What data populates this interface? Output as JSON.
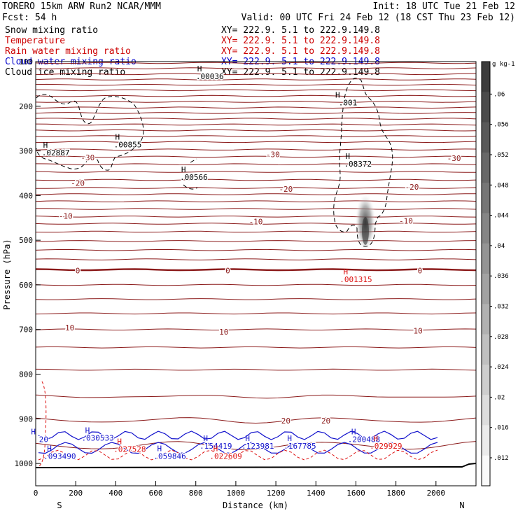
{
  "header": {
    "model": "TORERO  15km ARW   Run2    NCAR/MMM",
    "init": "Init: 18 UTC Tue 21 Feb 12",
    "fcst": "Fcst:   54 h",
    "valid": "Valid: 00 UTC Fri 24 Feb 12 (18 CST Thu 23 Feb 12)"
  },
  "legend": [
    {
      "label": "Snow mixing ratio",
      "color": "#000000",
      "xy": "XY= 222.9.  5.1 to 222.9.149.8"
    },
    {
      "label": "Temperature",
      "color": "#cc0000",
      "xy": "XY= 222.9.  5.1 to 222.9.149.8"
    },
    {
      "label": "Rain water mixing ratio",
      "color": "#cc0000",
      "xy": "XY= 222.9.  5.1 to 222.9.149.8"
    },
    {
      "label": "Cloud water mixing ratio",
      "color": "#0000cc",
      "xy": "XY= 222.9.  5.1 to 222.9.149.8"
    },
    {
      "label": "Cloud ice mixing ratio",
      "color": "#000000",
      "xy": "XY= 222.9.  5.1 to 222.9.149.8"
    }
  ],
  "colors": {
    "temperature": "#8b1a1a",
    "rain": "#dd1111",
    "cloud_water": "#1111cc",
    "ice": "#000000"
  },
  "chart_data": {
    "type": "cross-section",
    "xlabel": "Distance (km)",
    "ylabel": "Pressure (hPa)",
    "xlim": [
      0,
      2200
    ],
    "ylim": [
      1050,
      100
    ],
    "x_ticks": [
      "0",
      "200",
      "400",
      "600",
      "800",
      "1000",
      "1200",
      "1400",
      "1600",
      "1800",
      "2000"
    ],
    "y_ticks": [
      "100",
      "200",
      "300",
      "400",
      "500",
      "600",
      "700",
      "800",
      "900",
      "1000"
    ],
    "end_labels": {
      "left": "S",
      "right": "N"
    },
    "colorbar": {
      "unit": "g kg-1",
      "labels": [
        ".012",
        ".016",
        ".02",
        ".024",
        ".028",
        ".032",
        ".036",
        ".04",
        ".044",
        ".048",
        ".052",
        ".056",
        ".06"
      ]
    },
    "temperature_labels": [
      {
        "text": "-30",
        "x": 260,
        "p": 315
      },
      {
        "text": "-30",
        "x": 1185,
        "p": 308
      },
      {
        "text": "-30",
        "x": 2090,
        "p": 316
      },
      {
        "text": "-20",
        "x": 210,
        "p": 372
      },
      {
        "text": "-20",
        "x": 1250,
        "p": 385
      },
      {
        "text": "-20",
        "x": 1880,
        "p": 381
      },
      {
        "text": "-10",
        "x": 150,
        "p": 446
      },
      {
        "text": "-10",
        "x": 1100,
        "p": 458
      },
      {
        "text": "-10",
        "x": 1850,
        "p": 457
      },
      {
        "text": "0",
        "x": 210,
        "p": 568
      },
      {
        "text": "0",
        "x": 960,
        "p": 568
      },
      {
        "text": "0",
        "x": 1920,
        "p": 568
      },
      {
        "text": "10",
        "x": 170,
        "p": 696
      },
      {
        "text": "10",
        "x": 940,
        "p": 705
      },
      {
        "text": "10",
        "x": 1910,
        "p": 703
      },
      {
        "text": "20",
        "x": 1250,
        "p": 904
      },
      {
        "text": "20",
        "x": 1450,
        "p": 904
      }
    ],
    "maxima": [
      {
        "text": ".00036",
        "x": 870,
        "p": 131,
        "color": "black"
      },
      {
        "text": ".02887",
        "x": 100,
        "p": 302,
        "color": "black"
      },
      {
        "text": ".00855",
        "x": 460,
        "p": 284,
        "color": "black"
      },
      {
        "text": ".00566",
        "x": 790,
        "p": 357,
        "color": "black"
      },
      {
        "text": ".001",
        "x": 1560,
        "p": 190,
        "color": "black"
      },
      {
        "text": ".08372",
        "x": 1610,
        "p": 327,
        "color": "black"
      },
      {
        "text": ".001315",
        "x": 1600,
        "p": 586,
        "color": "red"
      },
      {
        "text": ".030533",
        "x": 310,
        "p": 941,
        "color": "blue"
      },
      {
        "text": ".093490",
        "x": 120,
        "p": 982,
        "color": "blue"
      },
      {
        "text": ".027528",
        "x": 470,
        "p": 966,
        "color": "red"
      },
      {
        "text": ".059846",
        "x": 670,
        "p": 982,
        "color": "blue"
      },
      {
        "text": ".154419",
        "x": 900,
        "p": 959,
        "color": "blue"
      },
      {
        "text": ".022609",
        "x": 950,
        "p": 982,
        "color": "red"
      },
      {
        "text": ".123981",
        "x": 1110,
        "p": 959,
        "color": "blue"
      },
      {
        "text": ".167785",
        "x": 1320,
        "p": 959,
        "color": "blue"
      },
      {
        "text": ".200488",
        "x": 1640,
        "p": 944,
        "color": "blue"
      },
      {
        "text": ".029929",
        "x": 1750,
        "p": 959,
        "color": "red"
      },
      {
        "text": "20",
        "x": 40,
        "p": 944,
        "color": "blue"
      }
    ]
  }
}
